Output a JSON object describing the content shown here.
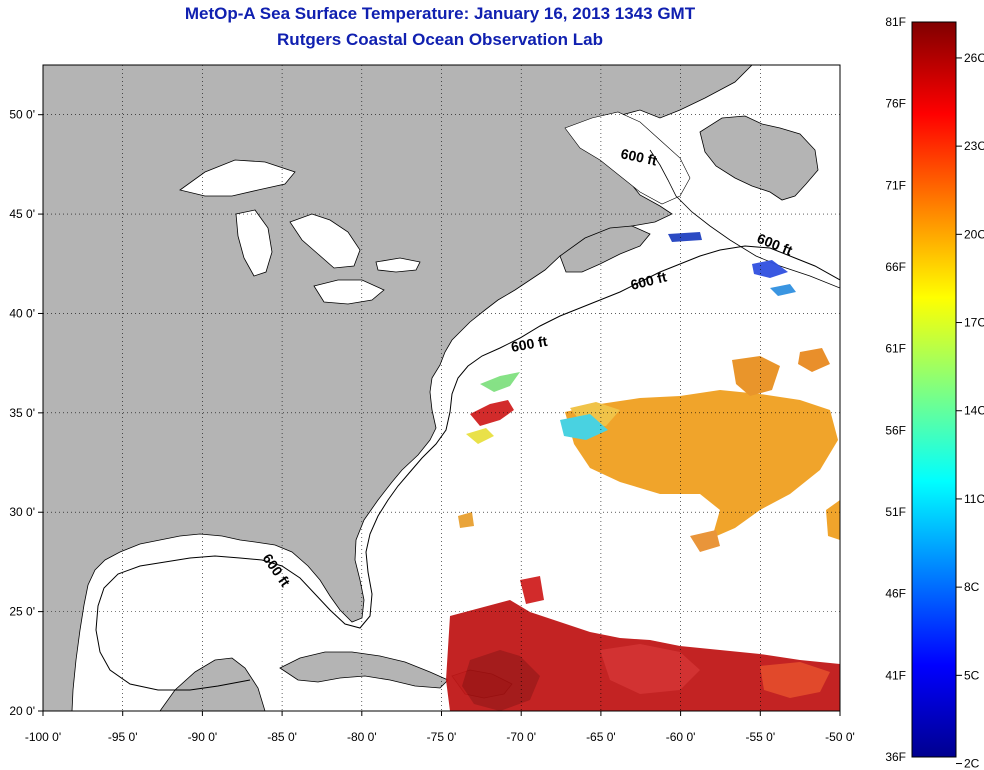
{
  "title": "MetOp-A Sea Surface Temperature:  January 16, 2013 1343 GMT",
  "subtitle": "Rutgers Coastal Ocean Observation Lab",
  "map": {
    "lon_range": [
      -100,
      -50
    ],
    "lat_range": [
      20,
      52.5
    ],
    "lon_ticks": [
      {
        "v": -100,
        "label": "-100 0'"
      },
      {
        "v": -95,
        "label": "-95 0'"
      },
      {
        "v": -90,
        "label": "-90 0'"
      },
      {
        "v": -85,
        "label": "-85 0'"
      },
      {
        "v": -80,
        "label": "-80 0'"
      },
      {
        "v": -75,
        "label": "-75 0'"
      },
      {
        "v": -70,
        "label": "-70 0'"
      },
      {
        "v": -65,
        "label": "-65 0'"
      },
      {
        "v": -60,
        "label": "-60 0'"
      },
      {
        "v": -55,
        "label": "-55 0'"
      },
      {
        "v": -50,
        "label": "-50 0'"
      }
    ],
    "lat_ticks": [
      {
        "v": 20,
        "label": "20 0'"
      },
      {
        "v": 25,
        "label": "25 0'"
      },
      {
        "v": 30,
        "label": "30 0'"
      },
      {
        "v": 35,
        "label": "35 0'"
      },
      {
        "v": 40,
        "label": "40 0'"
      },
      {
        "v": 45,
        "label": "45 0'"
      },
      {
        "v": 50,
        "label": "50 0'"
      }
    ],
    "grid": "dotted",
    "land_color": "#b4b4b4",
    "water_color": "#ffffff",
    "contour_label": "600 ft"
  },
  "colorbar": {
    "min_f": 36,
    "max_f": 81,
    "fahrenheit_labels": [
      "81F",
      "76F",
      "71F",
      "66F",
      "61F",
      "56F",
      "51F",
      "46F",
      "41F",
      "36F"
    ],
    "celsius_labels": [
      "26C",
      "23C",
      "20C",
      "17C",
      "14C",
      "11C",
      "8C",
      "5C",
      "2C"
    ],
    "colormap": "jet"
  }
}
